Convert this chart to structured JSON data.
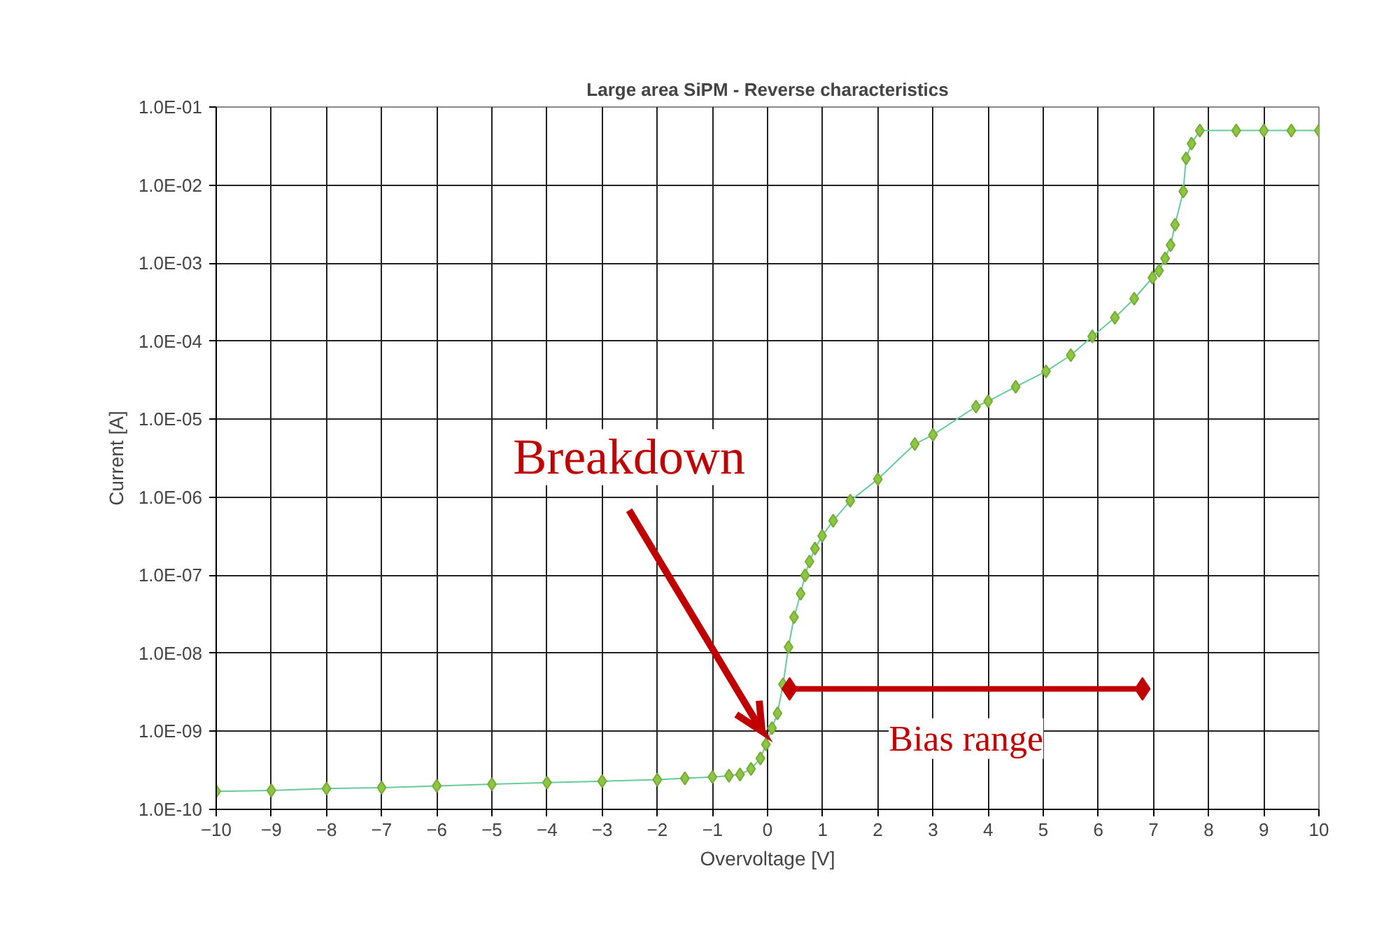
{
  "chart_data": {
    "type": "line",
    "title": "Large area SiPM - Reverse characteristics",
    "xlabel": "Overvoltage [V]",
    "ylabel": "Current [A]",
    "x": [
      -10,
      -9,
      -8,
      -7,
      -6,
      -5,
      -4,
      -3,
      -2,
      -1.5,
      -1,
      -0.7,
      -0.5,
      -0.3,
      -0.13,
      -0.03,
      0.08,
      0.18,
      0.28,
      0.38,
      0.48,
      0.6,
      0.68,
      0.76,
      0.86,
      0.99,
      1.19,
      1.5,
      2.0,
      2.67,
      3.0,
      3.78,
      4.0,
      4.5,
      5.05,
      5.5,
      5.89,
      6.3,
      6.65,
      6.98,
      7.1,
      7.21,
      7.31,
      7.39,
      7.54,
      7.59,
      7.69,
      7.84,
      8.5,
      9.0,
      9.5,
      10
    ],
    "series": [
      {
        "color": "#8dc63f",
        "values": [
          1.7e-10,
          1.75e-10,
          1.85e-10,
          1.9e-10,
          2e-10,
          2.1e-10,
          2.2e-10,
          2.3e-10,
          2.4e-10,
          2.5e-10,
          2.6e-10,
          2.7e-10,
          2.8e-10,
          3.3e-10,
          4.5e-10,
          6.8e-10,
          1.1e-09,
          1.7e-09,
          4e-09,
          1.2e-08,
          2.9e-08,
          5.8e-08,
          1e-07,
          1.5e-07,
          2.2e-07,
          3.2e-07,
          5e-07,
          9e-07,
          1.7e-06,
          4.8e-06,
          6.3e-06,
          1.45e-05,
          1.7e-05,
          2.6e-05,
          4.1e-05,
          6.6e-05,
          0.000115,
          0.0002,
          0.00035,
          0.00065,
          0.0008,
          0.00115,
          0.0017,
          0.0031,
          0.0083,
          0.022,
          0.034,
          0.05,
          0.05,
          0.05,
          0.05,
          0.05
        ]
      },
      {
        "type": "line",
        "color": "#c00000",
        "x": [
          0.4,
          6.8
        ],
        "values": [
          3.5e-09,
          3.5e-09
        ]
      }
    ],
    "marker": "diamond",
    "line_style": "solid",
    "log": "y",
    "grid": true,
    "xlim": [
      -10,
      10
    ],
    "xticks": [
      -10,
      -9,
      -8,
      -7,
      -6,
      -5,
      -4,
      -3,
      -2,
      -1,
      0,
      1,
      2,
      3,
      4,
      5,
      6,
      7,
      8,
      9,
      10
    ],
    "ylim": [
      1e-10,
      0.1
    ],
    "yticks": [
      {
        "value": 1e-10,
        "label": "1.0E-10"
      },
      {
        "value": 1e-09,
        "label": "1.0E-09"
      },
      {
        "value": 1e-08,
        "label": "1.0E-08"
      },
      {
        "value": 1e-07,
        "label": "1.0E-07"
      },
      {
        "value": 1e-06,
        "label": "1.0E-06"
      },
      {
        "value": 1e-05,
        "label": "1.0E-05"
      },
      {
        "value": 0.0001,
        "label": "1.0E-04"
      },
      {
        "value": 0.001,
        "label": "1.0E-03"
      },
      {
        "value": 0.01,
        "label": "1.0E-02"
      },
      {
        "value": 0.1,
        "label": "1.0E-01"
      }
    ],
    "annotations": [
      {
        "text": "Breakdown",
        "x": -0.1,
        "y": 1e-09
      },
      {
        "text": "Bias range",
        "x": 3.6,
        "y": 3.5e-09
      }
    ]
  }
}
